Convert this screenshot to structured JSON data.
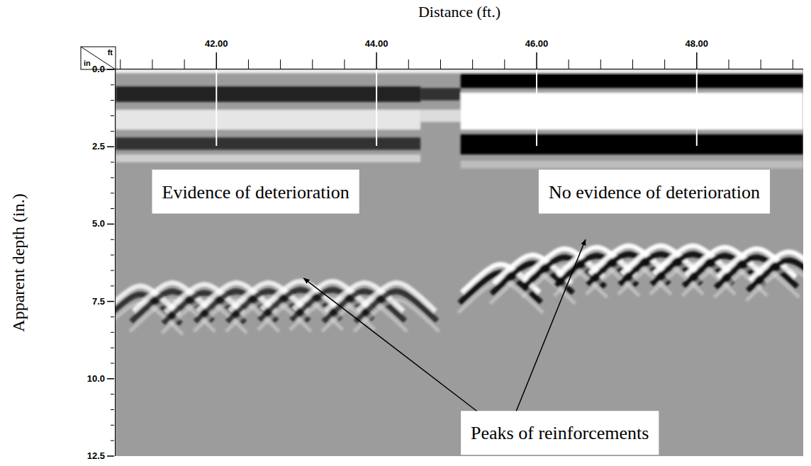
{
  "chart_data": {
    "type": "radargram",
    "title": "Distance (ft.)",
    "y_label": "Apparent depth (in.)",
    "corner_labels": [
      "ft",
      "in"
    ],
    "xlim": [
      40.74,
      49.33
    ],
    "xticks": [
      {
        "value": 42,
        "label": "42.00"
      },
      {
        "value": 44,
        "label": "44.00"
      },
      {
        "value": 46,
        "label": "46.00"
      },
      {
        "value": 48,
        "label": "48.00"
      }
    ],
    "x_minor_ticks": [
      40.8,
      41.2,
      41.6,
      42.4,
      42.8,
      43.2,
      43.6,
      44.4,
      44.8,
      45.2,
      45.6,
      46.4,
      46.8,
      47.2,
      47.6,
      48.4,
      48.8,
      49.2
    ],
    "ylim": [
      0,
      12.5
    ],
    "yticks": [
      {
        "value": 0,
        "label": "0.0"
      },
      2.5,
      {
        "value": 5,
        "label": "5.0"
      },
      7.5,
      {
        "value": 10,
        "label": "10.0"
      },
      12.5
    ],
    "y_minor_ticks": [
      0.5,
      1,
      1.5,
      2,
      3,
      3.5,
      4,
      4.5,
      5.5,
      6,
      6.5,
      7,
      8,
      8.5,
      9,
      9.5,
      10.5,
      11,
      11.5,
      12
    ],
    "layers": [
      {
        "x": [
          40.74,
          44.55
        ],
        "top": 0.55,
        "bottom": 1.05,
        "color": "#202020"
      },
      {
        "x": [
          40.74,
          44.55
        ],
        "top": 1.3,
        "bottom": 1.95,
        "color": "#e6e6e6"
      },
      {
        "x": [
          40.74,
          44.55
        ],
        "top": 2.2,
        "bottom": 2.6,
        "color": "#303030"
      },
      {
        "x": [
          40.74,
          44.55
        ],
        "top": 2.75,
        "bottom": 3.0,
        "color": "#cfcfcf"
      },
      {
        "x": [
          44.55,
          45.05
        ],
        "top": 0.6,
        "bottom": 1.0,
        "color": "#303030"
      },
      {
        "x": [
          44.55,
          45.05
        ],
        "top": 1.3,
        "bottom": 1.7,
        "color": "#dcdcdc"
      },
      {
        "x": [
          45.05,
          49.33
        ],
        "top": 0.05,
        "bottom": 0.6,
        "color": "#000000"
      },
      {
        "x": [
          45.05,
          49.33
        ],
        "top": 0.75,
        "bottom": 1.95,
        "color": "#ffffff"
      },
      {
        "x": [
          45.05,
          49.33
        ],
        "top": 2.1,
        "bottom": 2.75,
        "color": "#050505"
      },
      {
        "x": [
          45.05,
          49.33
        ],
        "top": 2.95,
        "bottom": 3.2,
        "color": "#bdbdbd"
      },
      {
        "x": [
          40.74,
          49.33
        ],
        "top": 0,
        "bottom": 0.12,
        "color": "#f0f0f0"
      }
    ],
    "reinforcement_peaks": [
      {
        "x": [
          41.05,
          41.45,
          41.85,
          42.25,
          42.65,
          43.05,
          43.45,
          43.85,
          44.25
        ],
        "y": [
          7.0,
          6.9,
          6.95,
          6.9,
          6.9,
          6.85,
          6.85,
          6.9,
          6.9
        ]
      },
      {
        "x": [
          45.55,
          45.95,
          46.35,
          46.75,
          47.15,
          47.55,
          47.95,
          48.35,
          48.75,
          49.15
        ],
        "y": [
          6.3,
          6.0,
          5.8,
          5.75,
          5.7,
          5.7,
          5.7,
          5.75,
          5.8,
          5.9
        ]
      }
    ],
    "annotations": [
      {
        "text": "Evidence of deterioration",
        "x": 42.49,
        "y": 3.95
      },
      {
        "text": "No evidence of deterioration",
        "x": 47.47,
        "y": 3.95
      },
      {
        "text": "Peaks of reinforcements",
        "x": 46.29,
        "y": 11.75,
        "arrows": [
          {
            "x": 43.09,
            "y": 6.75
          },
          {
            "x": 46.61,
            "y": 5.5
          }
        ]
      }
    ]
  }
}
